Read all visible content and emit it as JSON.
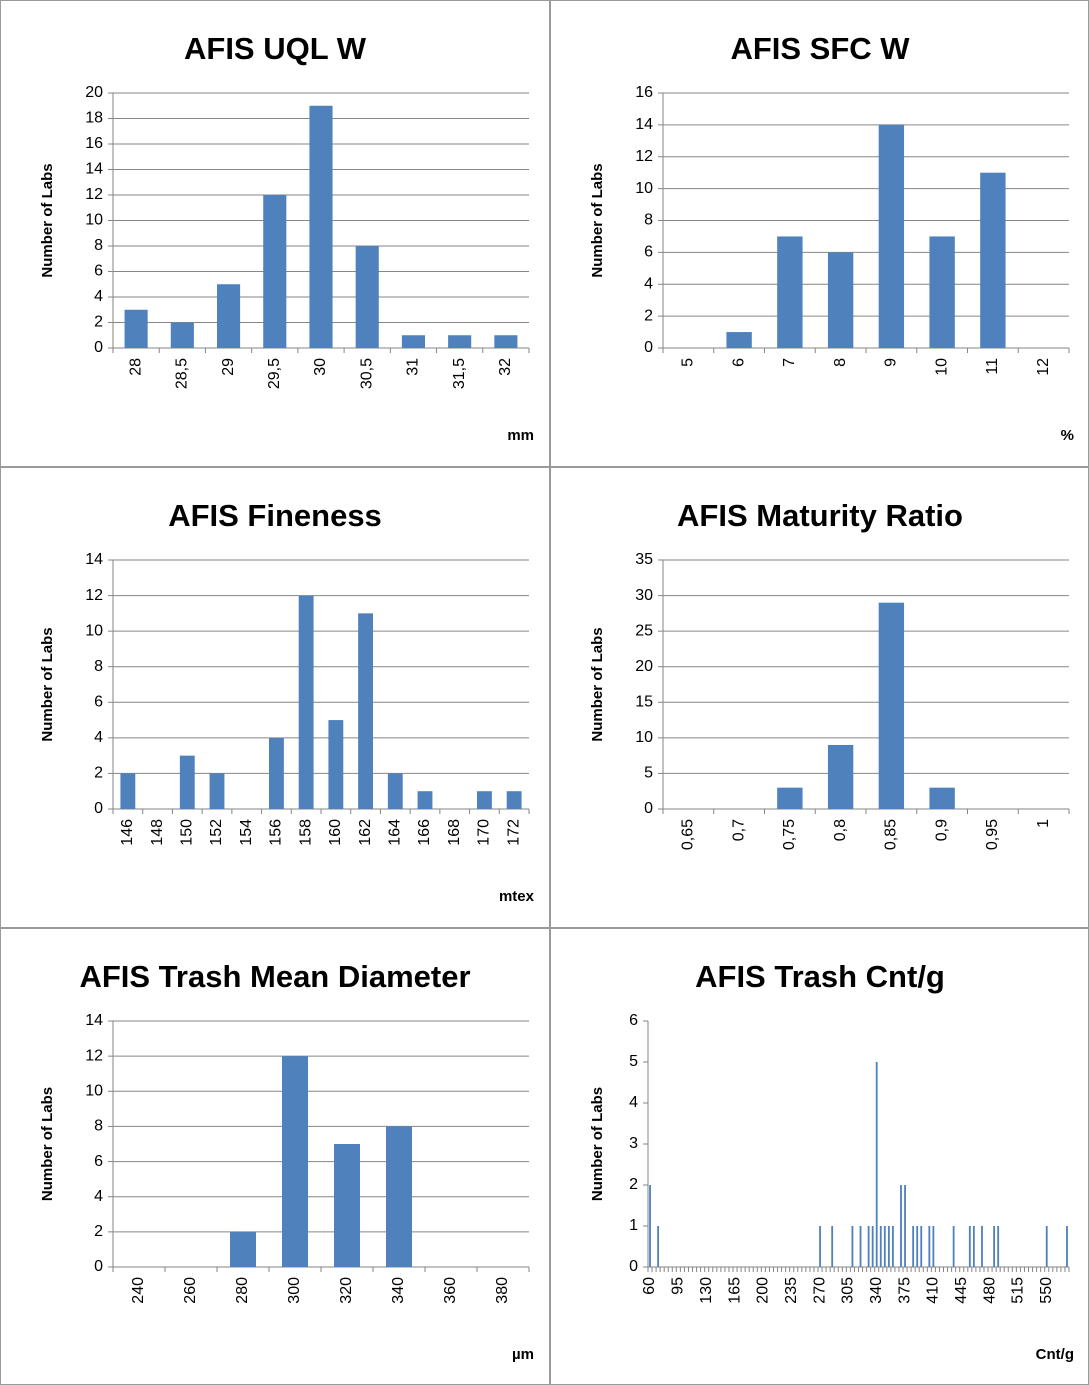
{
  "chart_data": [
    {
      "type": "bar",
      "title": "AFIS UQL W",
      "y_label": "Number of Labs",
      "x_label": "mm",
      "color": "#4f81bd",
      "categories": [
        "28",
        "28,5",
        "29",
        "29,5",
        "30",
        "30,5",
        "31",
        "31,5",
        "32"
      ],
      "values": [
        3,
        2,
        5,
        12,
        19,
        8,
        1,
        1,
        1
      ],
      "ylim": [
        0,
        20
      ],
      "yticks": [
        0,
        2,
        4,
        6,
        8,
        10,
        12,
        14,
        16,
        18,
        20
      ],
      "grid": true
    },
    {
      "type": "bar",
      "title": "AFIS SFC W",
      "y_label": "Number of Labs",
      "x_label": "%",
      "color": "#4f81bd",
      "categories": [
        "5",
        "6",
        "7",
        "8",
        "9",
        "10",
        "11",
        "12"
      ],
      "values": [
        0,
        1,
        7,
        6,
        14,
        7,
        11,
        0
      ],
      "ylim": [
        0,
        16
      ],
      "yticks": [
        0,
        2,
        4,
        6,
        8,
        10,
        12,
        14,
        16
      ],
      "grid": true
    },
    {
      "type": "bar",
      "title": "AFIS Fineness",
      "y_label": "Number of Labs",
      "x_label": "mtex",
      "color": "#4f81bd",
      "categories": [
        "146",
        "148",
        "150",
        "152",
        "154",
        "156",
        "158",
        "160",
        "162",
        "164",
        "166",
        "168",
        "170",
        "172"
      ],
      "values": [
        2,
        0,
        3,
        2,
        0,
        4,
        12,
        5,
        11,
        2,
        1,
        0,
        1,
        1
      ],
      "ylim": [
        0,
        14
      ],
      "yticks": [
        0,
        2,
        4,
        6,
        8,
        10,
        12,
        14
      ],
      "grid": true
    },
    {
      "type": "bar",
      "title": "AFIS Maturity Ratio",
      "y_label": "Number of Labs",
      "color": "#4f81bd",
      "categories": [
        "0,65",
        "0,7",
        "0,75",
        "0,8",
        "0,85",
        "0,9",
        "0,95",
        "1"
      ],
      "values": [
        0,
        0,
        3,
        9,
        29,
        3,
        0,
        0
      ],
      "ylim": [
        0,
        35
      ],
      "yticks": [
        0,
        5,
        10,
        15,
        20,
        25,
        30,
        35
      ],
      "grid": true
    },
    {
      "type": "bar",
      "title": "AFIS Trash Mean Diameter",
      "y_label": "Number of Labs",
      "x_label": "µm",
      "color": "#4f81bd",
      "categories": [
        "240",
        "260",
        "280",
        "300",
        "320",
        "340",
        "360",
        "380"
      ],
      "values": [
        0,
        0,
        2,
        12,
        7,
        8,
        0,
        0
      ],
      "ylim": [
        0,
        14
      ],
      "yticks": [
        0,
        2,
        4,
        6,
        8,
        10,
        12,
        14
      ],
      "grid": true
    },
    {
      "type": "bar",
      "title": "AFIS Trash Cnt/g",
      "y_label": "Number of Labs",
      "x_label": "Cnt/g",
      "color": "#4f81bd",
      "categories": [
        "60",
        null,
        null,
        null,
        null,
        null,
        null,
        "95",
        null,
        null,
        null,
        null,
        null,
        null,
        "130",
        null,
        null,
        null,
        null,
        null,
        null,
        "165",
        null,
        null,
        null,
        null,
        null,
        null,
        "200",
        null,
        null,
        null,
        null,
        null,
        null,
        "235",
        null,
        null,
        null,
        null,
        null,
        null,
        "270",
        null,
        null,
        null,
        null,
        null,
        null,
        "305",
        null,
        null,
        null,
        null,
        null,
        null,
        "340",
        null,
        null,
        null,
        null,
        null,
        null,
        "375",
        null,
        null,
        null,
        null,
        null,
        null,
        "410",
        null,
        null,
        null,
        null,
        null,
        null,
        "445",
        null,
        null,
        null,
        null,
        null,
        null,
        "480",
        null,
        null,
        null,
        null,
        null,
        null,
        "515",
        null,
        null,
        null,
        null,
        null,
        null,
        "550",
        null,
        null,
        null,
        null,
        null
      ],
      "values": [
        2,
        0,
        1,
        0,
        0,
        0,
        0,
        0,
        0,
        0,
        0,
        0,
        0,
        0,
        0,
        0,
        0,
        0,
        0,
        0,
        0,
        0,
        0,
        0,
        0,
        0,
        0,
        0,
        0,
        0,
        0,
        0,
        0,
        0,
        0,
        0,
        0,
        0,
        0,
        0,
        0,
        0,
        1,
        0,
        0,
        1,
        0,
        0,
        0,
        0,
        1,
        0,
        1,
        0,
        1,
        1,
        5,
        1,
        1,
        1,
        1,
        0,
        2,
        2,
        0,
        1,
        1,
        1,
        0,
        1,
        1,
        0,
        0,
        0,
        0,
        1,
        0,
        0,
        0,
        1,
        1,
        0,
        1,
        0,
        0,
        1,
        1,
        0,
        0,
        0,
        0,
        0,
        0,
        0,
        0,
        0,
        0,
        0,
        1,
        0,
        0,
        0,
        0,
        1
      ],
      "ylim": [
        0,
        6
      ],
      "yticks": [
        0,
        1,
        2,
        3,
        4,
        5,
        6
      ],
      "grid": false
    }
  ]
}
